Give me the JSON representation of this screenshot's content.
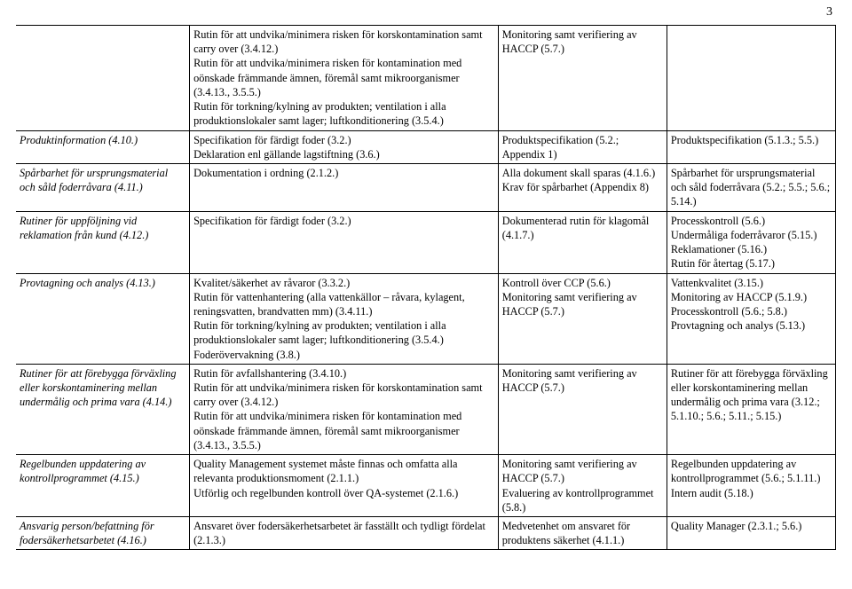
{
  "page_number": "3",
  "columns": {
    "c0_width": 180,
    "c1_width": 320,
    "c2_width": 175,
    "c3_width": 175
  },
  "font": {
    "family": "Garamond",
    "size_pt": 12.3,
    "color": "#000000"
  },
  "background_color": "#ffffff",
  "border_color": "#000000",
  "rows": [
    {
      "c0": "",
      "c1": "Rutin för att undvika/minimera risken för korskontamination samt carry over (3.4.12.)\nRutin för att undvika/minimera risken för kontamination med oönskade främmande ämnen, föremål samt mikroorganismer (3.4.13., 3.5.5.)\nRutin för torkning/kylning av produkten; ventilation i alla produktionslokaler samt lager; luftkonditionering (3.5.4.)",
      "c2": "Monitoring samt verifiering av HACCP (5.7.)",
      "c3": ""
    },
    {
      "c0": "Produktinformation (4.10.)",
      "c1": "Specifikation för färdigt foder (3.2.)\nDeklaration enl gällande lagstiftning (3.6.)",
      "c2": "Produktspecifikation (5.2.; Appendix 1)",
      "c3": "Produktspecifikation (5.1.3.; 5.5.)"
    },
    {
      "c0": "Spårbarhet för ursprungsmaterial och såld foderråvara (4.11.)",
      "c1": "Dokumentation i ordning (2.1.2.)",
      "c2": "Alla dokument skall sparas (4.1.6.)\nKrav för spårbarhet (Appendix 8)",
      "c3": "Spårbarhet för ursprungsmaterial och såld foderråvara (5.2.; 5.5.; 5.6.; 5.14.)"
    },
    {
      "c0": "Rutiner för uppföljning vid reklamation från kund (4.12.)",
      "c1": "Specifikation för färdigt foder (3.2.)",
      "c2": "Dokumenterad rutin för klagomål (4.1.7.)",
      "c3": "Processkontroll (5.6.)\nUndermåliga foderråvaror (5.15.)\nReklamationer (5.16.)\nRutin för återtag (5.17.)"
    },
    {
      "c0": "Provtagning och analys (4.13.)",
      "c1": "Kvalitet/säkerhet av råvaror (3.3.2.)\nRutin för vattenhantering (alla vattenkällor – råvara, kylagent, reningsvatten, brandvatten mm) (3.4.11.)\nRutin för torkning/kylning av produkten; ventilation i alla produktionslokaler samt lager; luftkonditionering (3.5.4.)\nFoderövervakning (3.8.)",
      "c2": "Kontroll över CCP (5.6.)\nMonitoring samt verifiering av HACCP (5.7.)",
      "c3": "Vattenkvalitet (3.15.)\nMonitoring av HACCP (5.1.9.)\nProcesskontroll (5.6.; 5.8.)\nProvtagning och analys (5.13.)"
    },
    {
      "c0": "Rutiner för att förebygga förväxling eller korskontaminering mellan undermålig och prima vara (4.14.)",
      "c1": "Rutin för avfallshantering (3.4.10.)\nRutin för att undvika/minimera risken för korskontamination samt carry over (3.4.12.)\nRutin för att undvika/minimera risken för kontamination med oönskade främmande ämnen, föremål samt mikroorganismer (3.4.13., 3.5.5.)",
      "c2": "Monitoring samt verifiering av HACCP (5.7.)",
      "c3": "Rutiner för att förebygga förväxling eller korskontaminering mellan undermålig och prima vara (3.12.; 5.1.10.; 5.6.; 5.11.; 5.15.)"
    },
    {
      "c0": "Regelbunden uppdatering av kontrollprogrammet (4.15.)",
      "c1": "Quality Management systemet måste finnas och omfatta alla relevanta produktionsmoment (2.1.1.)\nUtförlig och regelbunden kontroll över QA-systemet (2.1.6.)",
      "c2": "Monitoring samt verifiering av HACCP (5.7.)\nEvaluering av kontrollprogrammet (5.8.)",
      "c3": "Regelbunden uppdatering av kontrollprogrammet (5.6.; 5.1.11.)\nIntern audit (5.18.)"
    },
    {
      "c0": "Ansvarig person/befattning för fodersäkerhetsarbetet (4.16.)",
      "c1": "Ansvaret över fodersäkerhetsarbetet är fasställt och tydligt fördelat (2.1.3.)",
      "c2": "Medvetenhet om ansvaret för produktens säkerhet (4.1.1.)",
      "c3": "Quality Manager (2.3.1.; 5.6.)"
    }
  ]
}
